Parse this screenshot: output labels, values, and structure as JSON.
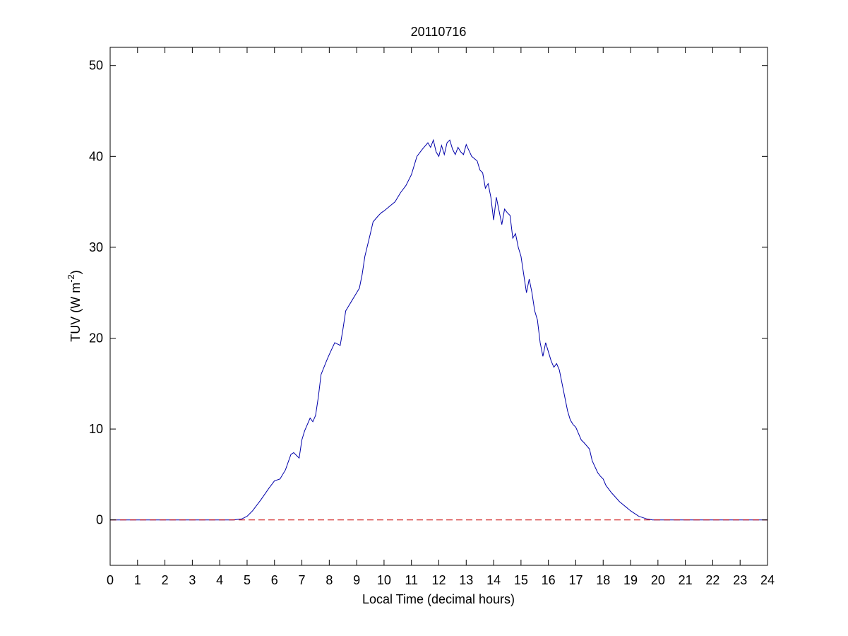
{
  "chart_data": {
    "type": "line",
    "title": "20110716",
    "xlabel": "Local Time (decimal hours)",
    "ylabel": {
      "main": "TUV (W m",
      "superscript": "-2",
      "suffix": ")"
    },
    "xlim": [
      0,
      24
    ],
    "ylim": [
      -5,
      52
    ],
    "xticks": [
      0,
      1,
      2,
      3,
      4,
      5,
      6,
      7,
      8,
      9,
      10,
      11,
      12,
      13,
      14,
      15,
      16,
      17,
      18,
      19,
      20,
      21,
      22,
      23,
      24
    ],
    "yticks": [
      0,
      10,
      20,
      30,
      40,
      50
    ],
    "grid": false,
    "series": [
      {
        "color": "#0000aa",
        "style": "solid",
        "x": [
          0,
          4.5,
          4.8,
          5.0,
          5.2,
          5.5,
          5.8,
          6.0,
          6.2,
          6.4,
          6.6,
          6.7,
          6.9,
          7.0,
          7.1,
          7.2,
          7.3,
          7.4,
          7.5,
          7.6,
          7.7,
          7.9,
          8.0,
          8.2,
          8.4,
          8.5,
          8.6,
          8.7,
          8.8,
          9.0,
          9.1,
          9.2,
          9.3,
          9.5,
          9.6,
          9.8,
          9.9,
          10.0,
          10.2,
          10.4,
          10.6,
          10.8,
          11.0,
          11.2,
          11.4,
          11.6,
          11.7,
          11.8,
          11.9,
          12.0,
          12.1,
          12.2,
          12.3,
          12.4,
          12.5,
          12.6,
          12.7,
          12.8,
          12.9,
          13.0,
          13.2,
          13.4,
          13.5,
          13.6,
          13.7,
          13.8,
          13.9,
          14.0,
          14.1,
          14.2,
          14.3,
          14.4,
          14.5,
          14.6,
          14.7,
          14.8,
          14.9,
          15.0,
          15.1,
          15.2,
          15.3,
          15.4,
          15.5,
          15.6,
          15.7,
          15.8,
          15.9,
          16.0,
          16.1,
          16.2,
          16.3,
          16.4,
          16.5,
          16.6,
          16.7,
          16.8,
          16.9,
          17.0,
          17.1,
          17.2,
          17.3,
          17.5,
          17.6,
          17.8,
          17.9,
          18.0,
          18.1,
          18.3,
          18.6,
          19.0,
          19.3,
          19.6,
          19.8,
          20.0,
          24
        ],
        "y": [
          0,
          0,
          0.1,
          0.4,
          1.0,
          2.2,
          3.5,
          4.3,
          4.5,
          5.5,
          7.2,
          7.4,
          6.8,
          8.8,
          9.8,
          10.5,
          11.2,
          10.8,
          11.5,
          13.5,
          16.0,
          17.5,
          18.2,
          19.5,
          19.2,
          21.0,
          23.0,
          23.5,
          24.0,
          25.0,
          25.5,
          27.0,
          29.0,
          31.5,
          32.8,
          33.5,
          33.8,
          34.0,
          34.5,
          35.0,
          36.0,
          36.8,
          38.0,
          40.0,
          40.8,
          41.5,
          41.0,
          41.8,
          40.5,
          40.0,
          41.2,
          40.2,
          41.5,
          41.8,
          40.8,
          40.2,
          41.0,
          40.5,
          40.2,
          41.3,
          40.0,
          39.5,
          38.5,
          38.2,
          36.5,
          37.0,
          35.5,
          33.0,
          35.5,
          34.0,
          32.5,
          34.2,
          33.8,
          33.5,
          31.0,
          31.5,
          30.0,
          29.0,
          27.0,
          25.0,
          26.5,
          25.0,
          23.0,
          22.0,
          19.5,
          18.0,
          19.5,
          18.5,
          17.5,
          16.8,
          17.2,
          16.5,
          15.0,
          13.5,
          12.0,
          11.0,
          10.5,
          10.2,
          9.5,
          8.8,
          8.5,
          7.8,
          6.5,
          5.2,
          4.8,
          4.5,
          3.8,
          3.0,
          2.0,
          1.0,
          0.4,
          0.1,
          0,
          0,
          0
        ]
      },
      {
        "color": "#cc0000",
        "style": "dashed",
        "x": [
          0,
          24
        ],
        "y": [
          0,
          0
        ]
      }
    ]
  }
}
